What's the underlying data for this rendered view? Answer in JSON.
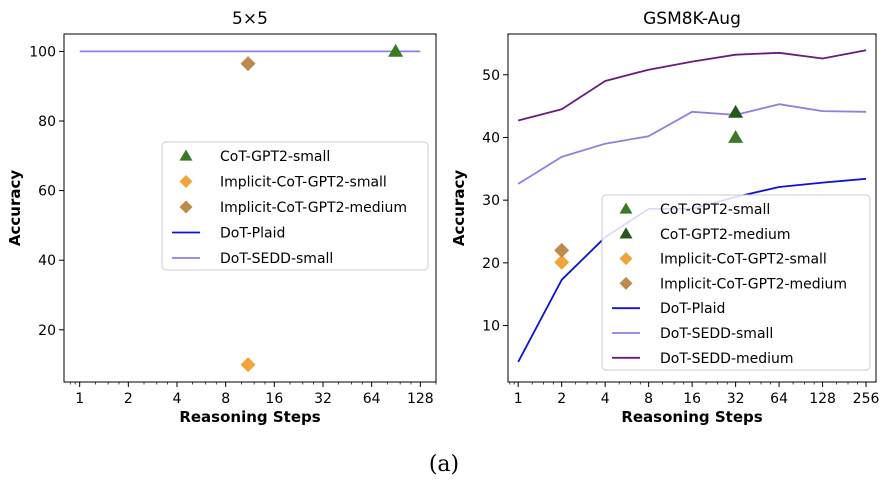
{
  "caption": "(a)",
  "colors": {
    "cot_small": "#3a7a27",
    "cot_medium": "#24591a",
    "implicit_small": "#f2a43a",
    "implicit_medium": "#bf8a4c",
    "plaid": "#1111d6",
    "sedd_small": "#8f7fe0",
    "sedd_medium": "#6b1a7d"
  },
  "chart_data": [
    {
      "type": "line",
      "title": "5×5",
      "xlabel": "Reasoning Steps",
      "ylabel": "Accuracy",
      "xscale": "log2",
      "xlim": [
        0.8,
        160
      ],
      "ylim": [
        5,
        105
      ],
      "xticks": [
        1,
        2,
        4,
        8,
        16,
        32,
        64,
        128
      ],
      "yticks": [
        20,
        40,
        60,
        80,
        100
      ],
      "legend_position": "center-right",
      "series": [
        {
          "name": "CoT-GPT2-small",
          "kind": "marker",
          "marker": "triangle",
          "color": "cot_small",
          "points": [
            [
              90,
              100
            ]
          ]
        },
        {
          "name": "Implicit-CoT-GPT2-small",
          "kind": "marker",
          "marker": "diamond",
          "color": "implicit_small",
          "points": [
            [
              11,
              10
            ]
          ]
        },
        {
          "name": "Implicit-CoT-GPT2-medium",
          "kind": "marker",
          "marker": "diamond",
          "color": "implicit_medium",
          "points": [
            [
              11,
              96.5
            ]
          ]
        },
        {
          "name": "DoT-Plaid",
          "kind": "line",
          "color": "plaid",
          "points": []
        },
        {
          "name": "DoT-SEDD-small",
          "kind": "line",
          "color": "sedd_small",
          "points": [
            [
              1,
              100
            ],
            [
              2,
              100
            ],
            [
              4,
              100
            ],
            [
              8,
              100
            ],
            [
              16,
              100
            ],
            [
              32,
              100
            ],
            [
              64,
              100
            ],
            [
              128,
              100
            ]
          ]
        }
      ]
    },
    {
      "type": "line",
      "title": "GSM8K-Aug",
      "xlabel": "Reasoning Steps",
      "ylabel": "Accuracy",
      "xscale": "log2",
      "xlim": [
        0.85,
        300
      ],
      "ylim": [
        1,
        56.5
      ],
      "xticks": [
        1,
        2,
        4,
        8,
        16,
        32,
        64,
        128,
        256
      ],
      "yticks": [
        10,
        20,
        30,
        40,
        50
      ],
      "legend_position": "lower-right",
      "series": [
        {
          "name": "CoT-GPT2-small",
          "kind": "marker",
          "marker": "triangle",
          "color": "cot_small",
          "points": [
            [
              32,
              40
            ]
          ]
        },
        {
          "name": "CoT-GPT2-medium",
          "kind": "marker",
          "marker": "triangle",
          "color": "cot_medium",
          "points": [
            [
              32,
              44
            ]
          ]
        },
        {
          "name": "Implicit-CoT-GPT2-small",
          "kind": "marker",
          "marker": "diamond",
          "color": "implicit_small",
          "points": [
            [
              2,
              20.1
            ]
          ]
        },
        {
          "name": "Implicit-CoT-GPT2-medium",
          "kind": "marker",
          "marker": "diamond",
          "color": "implicit_medium",
          "points": [
            [
              2,
              22
            ]
          ]
        },
        {
          "name": "DoT-Plaid",
          "kind": "line",
          "color": "plaid",
          "points": [
            [
              1,
              4.2
            ],
            [
              2,
              17.3
            ],
            [
              4,
              24.1
            ],
            [
              8,
              28.6
            ],
            [
              16,
              28.6
            ],
            [
              32,
              30.5
            ],
            [
              64,
              32.1
            ],
            [
              128,
              32.8
            ],
            [
              256,
              33.4
            ]
          ]
        },
        {
          "name": "DoT-SEDD-small",
          "kind": "line",
          "color": "sedd_small",
          "points": [
            [
              1,
              32.6
            ],
            [
              2,
              36.9
            ],
            [
              4,
              39
            ],
            [
              8,
              40.2
            ],
            [
              16,
              44.1
            ],
            [
              32,
              43.6
            ],
            [
              64,
              45.3
            ],
            [
              128,
              44.2
            ],
            [
              256,
              44.1
            ]
          ]
        },
        {
          "name": "DoT-SEDD-medium",
          "kind": "line",
          "color": "sedd_medium",
          "points": [
            [
              1,
              42.7
            ],
            [
              2,
              44.5
            ],
            [
              4,
              49
            ],
            [
              8,
              50.8
            ],
            [
              16,
              52.1
            ],
            [
              32,
              53.2
            ],
            [
              64,
              53.5
            ],
            [
              128,
              52.6
            ],
            [
              256,
              53.9
            ]
          ]
        }
      ]
    }
  ]
}
